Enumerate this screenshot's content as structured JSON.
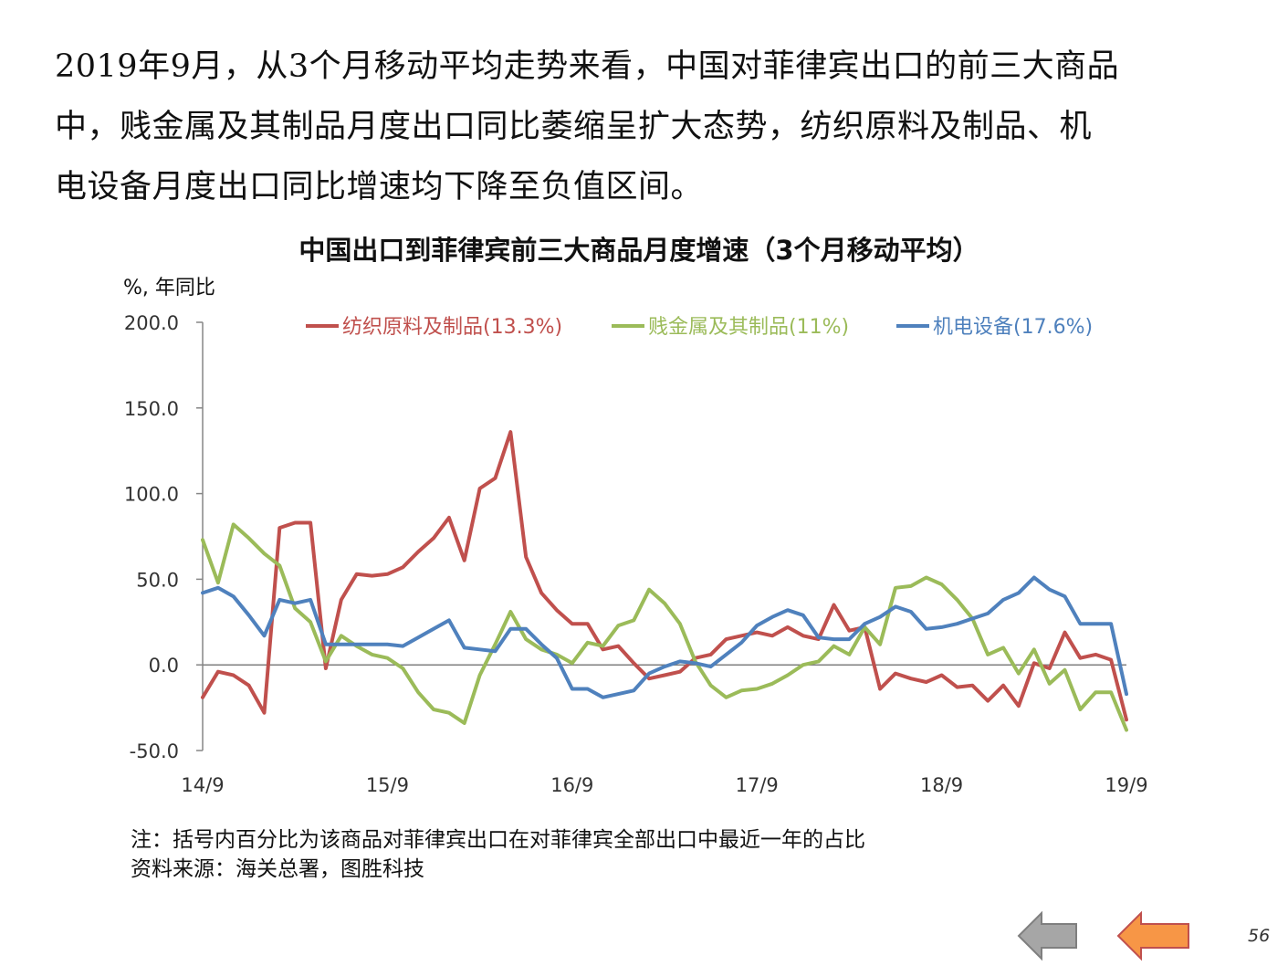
{
  "intro": {
    "line1": "2019年9月，从3个月移动平均走势来看，中国对菲律宾出口的前三大商品",
    "line2": "中，贱金属及其制品月度出口同比萎缩呈扩大态势，纺织原料及制品、机",
    "line3": "电设备月度出口同比增速均下降至负值区间。"
  },
  "footer": {
    "note": "注：括号内百分比为该商品对菲律宾出口在对菲律宾全部出口中最近一年的占比",
    "source": "资料来源：海关总署，图胜科技"
  },
  "nav": {
    "prev_icon": "arrow-left-gray",
    "next_icon": "arrow-left-orange"
  },
  "page_number": "56",
  "chart_data": {
    "type": "line",
    "title": "中国出口到菲律宾前三大商品月度增速（3个月移动平均）",
    "ylabel": "%, 年同比",
    "xlabel": "",
    "ylim": [
      -50,
      200
    ],
    "yticks": [
      "200.0",
      "150.0",
      "100.0",
      "50.0",
      "0.0",
      "-50.0"
    ],
    "x": [
      "14/9",
      "14/10",
      "14/11",
      "14/12",
      "15/1",
      "15/2",
      "15/3",
      "15/4",
      "15/5",
      "15/6",
      "15/7",
      "15/8",
      "15/9",
      "15/10",
      "15/11",
      "15/12",
      "16/1",
      "16/2",
      "16/3",
      "16/4",
      "16/5",
      "16/6",
      "16/7",
      "16/8",
      "16/9",
      "16/10",
      "16/11",
      "16/12",
      "17/1",
      "17/2",
      "17/3",
      "17/4",
      "17/5",
      "17/6",
      "17/7",
      "17/8",
      "17/9",
      "17/10",
      "17/11",
      "17/12",
      "18/1",
      "18/2",
      "18/3",
      "18/4",
      "18/5",
      "18/6",
      "18/7",
      "18/8",
      "18/9",
      "18/10",
      "18/11",
      "18/12",
      "19/1",
      "19/2",
      "19/3",
      "19/4",
      "19/5",
      "19/6",
      "19/7",
      "19/8",
      "19/9"
    ],
    "xticks": [
      "14/9",
      "15/9",
      "16/9",
      "17/9",
      "18/9",
      "19/9"
    ],
    "legend_position": "top",
    "grid": false,
    "series": [
      {
        "name": "纺织原料及制品(13.3%)",
        "color": "#c0504d",
        "values": [
          -19,
          -4,
          -6,
          -12,
          -28,
          80,
          83,
          83,
          -2,
          38,
          53,
          52,
          53,
          57,
          66,
          74,
          86,
          61,
          103,
          109,
          136,
          63,
          42,
          32,
          24,
          24,
          9,
          11,
          1,
          -8,
          -6,
          -4,
          4,
          6,
          15,
          17,
          19,
          17,
          22,
          17,
          15,
          35,
          20,
          22,
          -14,
          -5,
          -8,
          -10,
          -6,
          -13,
          -12,
          -21,
          -12,
          -24,
          1,
          -2,
          19,
          4,
          6,
          3,
          -32
        ]
      },
      {
        "name": "贱金属及其制品(11%)",
        "color": "#9bbb59",
        "values": [
          73,
          48,
          82,
          74,
          65,
          58,
          33,
          25,
          2,
          17,
          11,
          6,
          4,
          -2,
          -16,
          -26,
          -28,
          -34,
          -6,
          12,
          31,
          15,
          9,
          6,
          1,
          13,
          11,
          23,
          26,
          44,
          36,
          24,
          2,
          -12,
          -19,
          -15,
          -14,
          -11,
          -6,
          0,
          2,
          11,
          6,
          22,
          12,
          45,
          46,
          51,
          47,
          38,
          27,
          6,
          10,
          -5,
          9,
          -11,
          -3,
          -26,
          -16,
          -16,
          -38
        ]
      },
      {
        "name": "机电设备(17.6%)",
        "color": "#4f81bd",
        "values": [
          42,
          45,
          40,
          29,
          17,
          38,
          36,
          38,
          12,
          12,
          12,
          12,
          12,
          11,
          16,
          21,
          26,
          10,
          9,
          8,
          21,
          21,
          12,
          4,
          -14,
          -14,
          -19,
          -17,
          -15,
          -5,
          -1,
          2,
          1,
          -1,
          6,
          13,
          23,
          28,
          32,
          29,
          16,
          15,
          15,
          24,
          28,
          34,
          31,
          21,
          22,
          24,
          27,
          30,
          38,
          42,
          51,
          44,
          40,
          24,
          24,
          24,
          -17
        ]
      }
    ]
  }
}
